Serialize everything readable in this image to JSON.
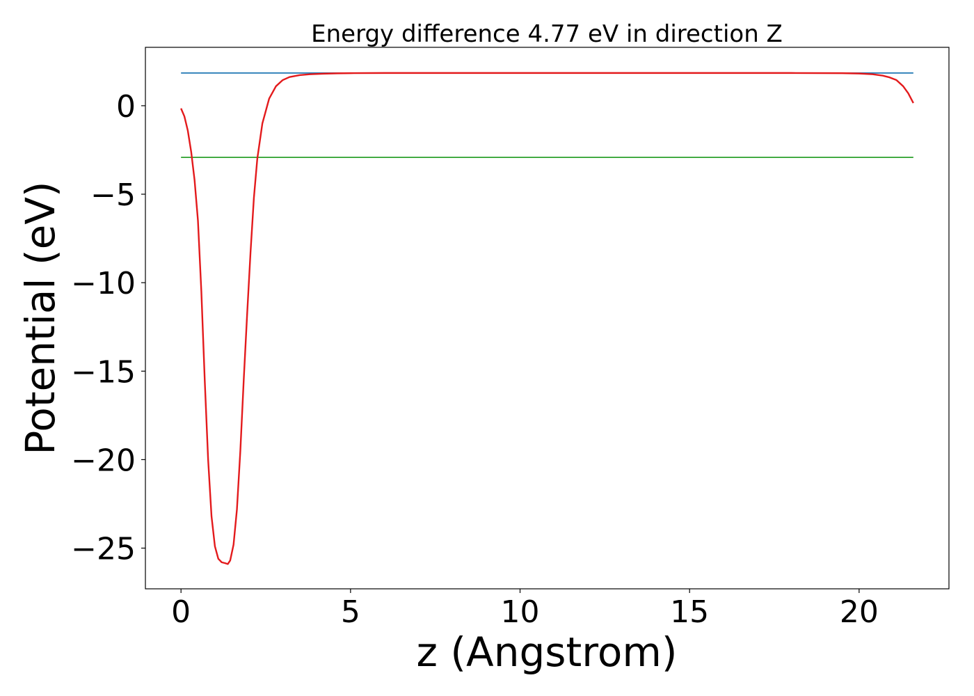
{
  "chart_data": {
    "type": "line",
    "title": "Energy difference 4.77 eV in direction Z",
    "xlabel": "z (Angstrom)",
    "ylabel": "Potential (eV)",
    "xlim": [
      -1.05,
      22.65
    ],
    "ylim": [
      -27.3,
      3.3
    ],
    "xticks": [
      0,
      5,
      10,
      15,
      20
    ],
    "xtick_labels": [
      "0",
      "5",
      "10",
      "15",
      "20"
    ],
    "yticks": [
      0,
      -5,
      -10,
      -15,
      -20,
      -25
    ],
    "ytick_labels": [
      "0",
      "−5",
      "−10",
      "−15",
      "−20",
      "−25"
    ],
    "grid": false,
    "series": [
      {
        "color": "#1f77b4",
        "x": [
          0,
          21.6
        ],
        "y": [
          1.85,
          1.85
        ]
      },
      {
        "color": "#2ca02c",
        "x": [
          0,
          21.6
        ],
        "y": [
          -2.92,
          -2.92
        ]
      },
      {
        "color": "#e31a1c",
        "x": [
          0,
          0.1,
          0.2,
          0.3,
          0.4,
          0.5,
          0.6,
          0.7,
          0.8,
          0.9,
          1.0,
          1.1,
          1.2,
          1.3,
          1.38,
          1.45,
          1.55,
          1.65,
          1.75,
          1.85,
          1.95,
          2.05,
          2.15,
          2.25,
          2.4,
          2.6,
          2.8,
          3.0,
          3.2,
          3.5,
          3.8,
          4.2,
          4.6,
          5.0,
          6.0,
          8.0,
          10.0,
          12.0,
          14.0,
          16.0,
          18.0,
          19.5,
          20.0,
          20.4,
          20.7,
          20.9,
          21.1,
          21.3,
          21.45,
          21.6
        ],
        "y": [
          -0.15,
          -0.6,
          -1.4,
          -2.6,
          -4.2,
          -6.5,
          -10.5,
          -15.5,
          -20.0,
          -23.2,
          -24.9,
          -25.6,
          -25.8,
          -25.85,
          -25.9,
          -25.7,
          -24.8,
          -22.8,
          -19.5,
          -15.5,
          -11.8,
          -8.3,
          -5.2,
          -3.0,
          -1.0,
          0.4,
          1.1,
          1.45,
          1.62,
          1.73,
          1.78,
          1.81,
          1.83,
          1.84,
          1.85,
          1.85,
          1.85,
          1.85,
          1.85,
          1.85,
          1.85,
          1.84,
          1.82,
          1.78,
          1.7,
          1.6,
          1.45,
          1.1,
          0.7,
          0.15
        ]
      }
    ]
  }
}
